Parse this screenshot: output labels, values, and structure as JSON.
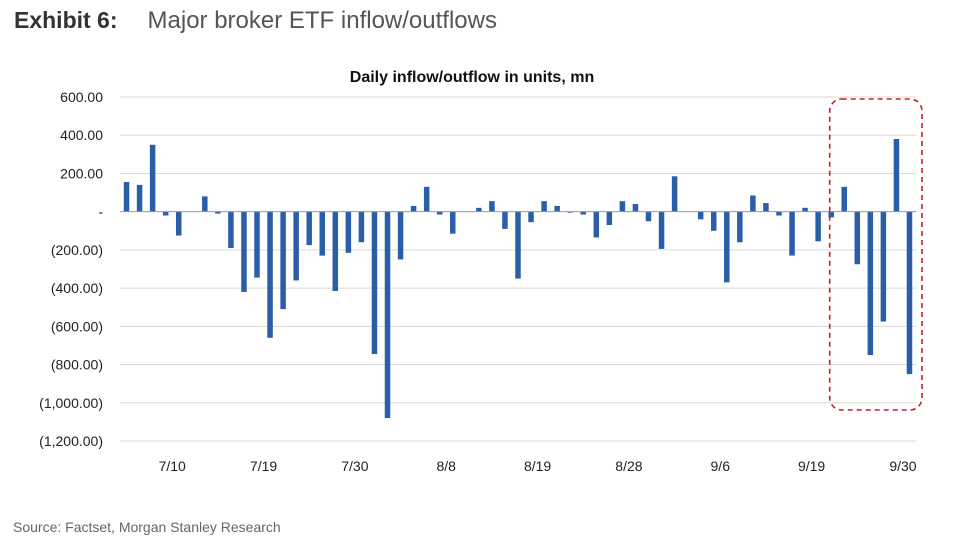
{
  "header": {
    "exhibit_label": "Exhibit 6:",
    "title": "Major broker ETF inflow/outflows"
  },
  "source": "Source: Factset, Morgan Stanley Research",
  "colors": {
    "bar": "#2b5ea8",
    "highlight": "#c0202a",
    "grid": "#d9d9d9",
    "axis": "#999999"
  },
  "chart_data": {
    "type": "bar",
    "title": "Daily inflow/outflow in units, mn",
    "xlabel": "",
    "ylabel": "",
    "ylim": [
      -1200,
      600
    ],
    "grid": true,
    "y_ticks": [
      600,
      400,
      200,
      0,
      -200,
      -400,
      -600,
      -800,
      -1000,
      -1200
    ],
    "y_tick_labels": [
      "600.00",
      "400.00",
      "200.00",
      "-",
      "(200.00)",
      "(400.00)",
      "(600.00)",
      "(800.00)",
      "(1,000.00)",
      "(1,200.00)"
    ],
    "x_tick_labels": [
      {
        "label": "7/10",
        "index": 3.5
      },
      {
        "label": "7/19",
        "index": 10.5
      },
      {
        "label": "7/30",
        "index": 17.5
      },
      {
        "label": "8/8",
        "index": 24.5
      },
      {
        "label": "8/19",
        "index": 31.5
      },
      {
        "label": "8/28",
        "index": 38.5
      },
      {
        "label": "9/6",
        "index": 45.5
      },
      {
        "label": "9/19",
        "index": 52.5
      },
      {
        "label": "9/30",
        "index": 59.5
      }
    ],
    "highlight_range": [
      55,
      60
    ],
    "values": [
      155,
      140,
      350,
      -20,
      -125,
      0,
      80,
      -10,
      -190,
      -420,
      -345,
      -660,
      -510,
      -360,
      -175,
      -230,
      -415,
      -215,
      -160,
      -745,
      -1080,
      -250,
      30,
      130,
      -15,
      -115,
      0,
      20,
      55,
      -90,
      -350,
      -55,
      55,
      30,
      -5,
      -15,
      -135,
      -70,
      55,
      40,
      -50,
      -195,
      185,
      0,
      -40,
      -100,
      -370,
      -160,
      85,
      45,
      -20,
      -230,
      20,
      -155,
      -30,
      130,
      -275,
      -750,
      -575,
      380,
      -850
    ]
  }
}
